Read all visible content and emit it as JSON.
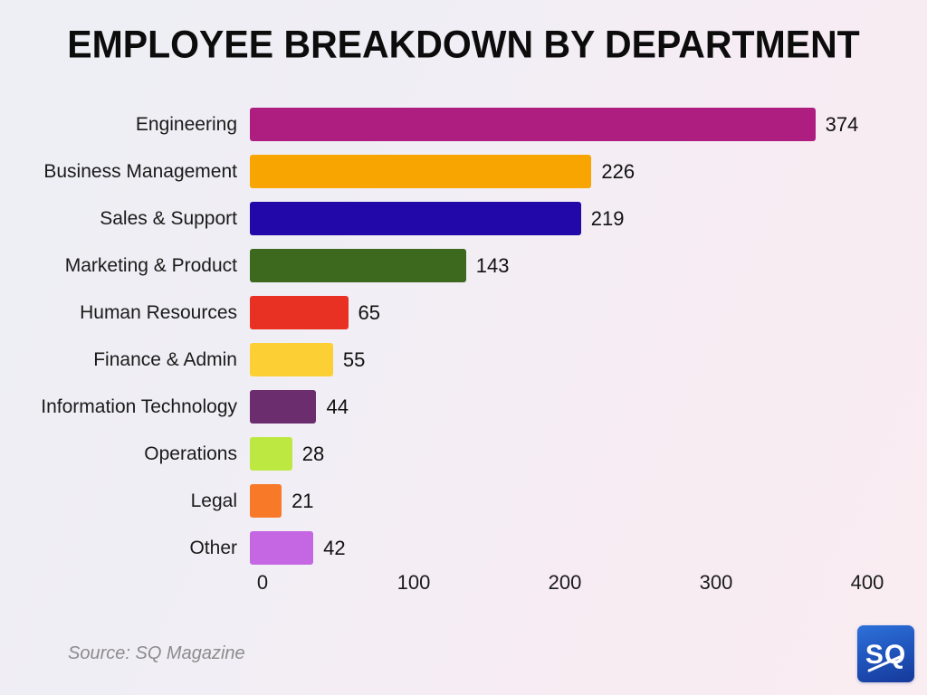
{
  "title": "EMPLOYEE BREAKDOWN BY DEPARTMENT",
  "source": "Source: SQ Magazine",
  "logo": {
    "text": "SQ"
  },
  "chart_data": {
    "type": "bar",
    "orientation": "horizontal",
    "title": "EMPLOYEE BREAKDOWN BY DEPARTMENT",
    "categories": [
      "Engineering",
      "Business Management",
      "Sales & Support",
      "Marketing & Product",
      "Human Resources",
      "Finance & Admin",
      "Information Technology",
      "Operations",
      "Legal",
      "Other"
    ],
    "values": [
      374,
      226,
      219,
      143,
      65,
      55,
      44,
      28,
      21,
      42
    ],
    "colors": [
      "#ad1e80",
      "#f8a502",
      "#2208a8",
      "#3c691e",
      "#e93123",
      "#fcd034",
      "#6b2d6e",
      "#bde841",
      "#f87a28",
      "#c567e3"
    ],
    "xlabel": "",
    "ylabel": "",
    "xlim": [
      0,
      400
    ],
    "xticks": [
      0,
      100,
      200,
      300,
      400
    ],
    "grid": false,
    "legend": false,
    "value_labels": true
  }
}
